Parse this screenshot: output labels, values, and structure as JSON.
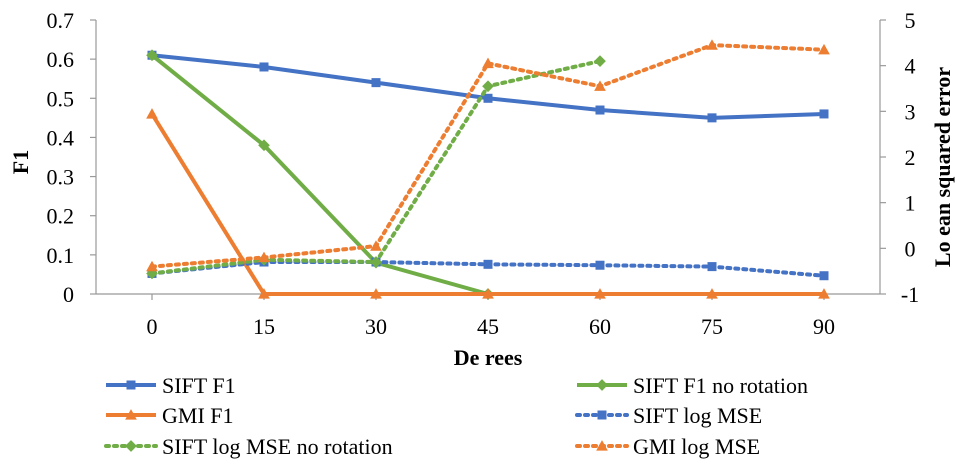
{
  "chart_data": {
    "type": "line",
    "x": [
      0,
      15,
      30,
      45,
      60,
      75,
      90
    ],
    "xlabel": "De  rees",
    "ylabel": "F1",
    "y2label": "Lo         ean squared error",
    "ylim": [
      0,
      0.7
    ],
    "y2lim": [
      -1,
      5
    ],
    "yticks": [
      "0",
      "0.1",
      "0.2",
      "0.3",
      "0.4",
      "0.5",
      "0.6",
      "0.7"
    ],
    "y2ticks": [
      "-1",
      "0",
      "1",
      "2",
      "3",
      "4",
      "5"
    ],
    "xticks": [
      "0",
      "15",
      "30",
      "45",
      "60",
      "75",
      "90"
    ],
    "grid": false,
    "legend_position": "bottom",
    "series": [
      {
        "name": "SIFT F1",
        "axis": "left",
        "style": "solid",
        "marker": "square",
        "color": "#4472C4",
        "values": [
          0.61,
          0.58,
          0.54,
          0.5,
          0.47,
          0.45,
          0.46
        ]
      },
      {
        "name": "SIFT F1 no rotation",
        "axis": "left",
        "style": "solid",
        "marker": "diamond",
        "color": "#70AD47",
        "values": [
          0.61,
          0.38,
          0.08,
          0.0,
          null,
          null,
          null
        ]
      },
      {
        "name": "GMI F1",
        "axis": "left",
        "style": "solid",
        "marker": "triangle",
        "color": "#ED7D31",
        "values": [
          0.46,
          0.0,
          0.0,
          0.0,
          0.0,
          0.0,
          0.0
        ]
      },
      {
        "name": "SIFT log MSE",
        "axis": "right",
        "style": "dotted",
        "marker": "square",
        "color": "#4472C4",
        "values": [
          -0.55,
          -0.3,
          -0.3,
          -0.35,
          -0.37,
          -0.4,
          -0.6
        ]
      },
      {
        "name": "SIFT log MSE no rotation",
        "axis": "right",
        "style": "dotted",
        "marker": "diamond",
        "color": "#70AD47",
        "values": [
          -0.55,
          -0.25,
          -0.3,
          3.55,
          4.1,
          null,
          null
        ]
      },
      {
        "name": "GMI log MSE",
        "axis": "right",
        "style": "dotted",
        "marker": "triangle",
        "color": "#ED7D31",
        "values": [
          -0.4,
          -0.2,
          0.05,
          4.05,
          3.55,
          4.45,
          4.35
        ]
      }
    ]
  }
}
